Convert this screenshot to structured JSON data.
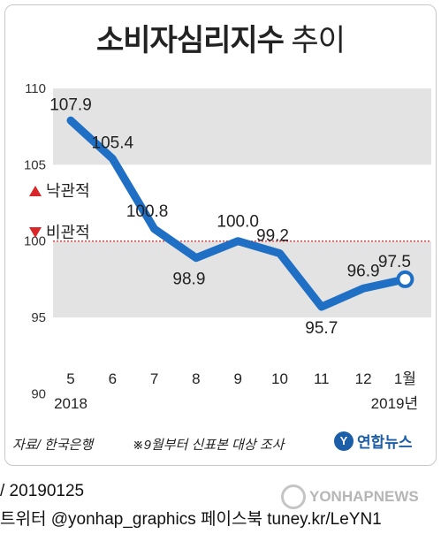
{
  "header": {
    "title_main": "소비자심리지수",
    "title_sub": "추이"
  },
  "chart_data": {
    "type": "line",
    "title": "소비자심리지수 추이",
    "categories": [
      "5",
      "6",
      "7",
      "8",
      "9",
      "10",
      "11",
      "12",
      "1월"
    ],
    "year_labels": {
      "start": "2018",
      "end": "2019년"
    },
    "values": [
      107.9,
      105.4,
      100.8,
      98.9,
      100.0,
      99.2,
      95.7,
      96.9,
      97.5
    ],
    "value_labels": [
      "107.9",
      "105.4",
      "100.8",
      "98.9",
      "100.0",
      "99.2",
      "95.7",
      "96.9",
      "97.5"
    ],
    "ylim": [
      88,
      110
    ],
    "yticks": [
      90,
      95,
      100,
      105,
      110
    ],
    "reference_line": 100,
    "legend": {
      "up": "낙관적",
      "down": "비관적"
    },
    "colors": {
      "line": "#1f6fc5",
      "band": "#e3e3e3",
      "reference": "#d9262a",
      "marker_up": "#d9262a"
    }
  },
  "footer": {
    "source": "자료/ 한국은행",
    "note": "※9월부터 신표본 대상 조사",
    "logo_text": "연합뉴스"
  },
  "meta": {
    "date": "/ 20190125",
    "social": "트위터 @yonhap_graphics  페이스북 tuney.kr/LeYN1",
    "watermark": "YONHAPNEWS"
  }
}
